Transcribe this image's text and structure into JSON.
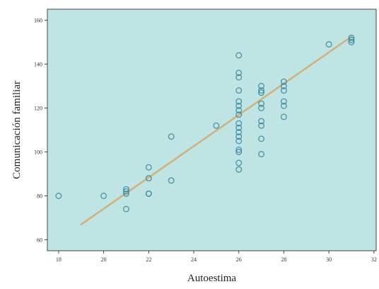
{
  "chart_data": {
    "type": "scatter",
    "xlabel": "Autoestima",
    "ylabel": "Comunicación familiar",
    "xlim": [
      17.5,
      32.1
    ],
    "ylim": [
      55,
      165
    ],
    "xticks": [
      18,
      20,
      22,
      24,
      26,
      28,
      30,
      32
    ],
    "yticks": [
      60,
      80,
      100,
      120,
      140,
      160
    ],
    "grid": false,
    "plot_background": "#bfe4e4",
    "marker_color": "#3b8aa0",
    "fit_line_color": "#d2b07a",
    "points": [
      [
        18,
        80
      ],
      [
        20,
        80
      ],
      [
        21,
        83
      ],
      [
        21,
        82
      ],
      [
        21,
        81
      ],
      [
        21,
        74
      ],
      [
        22,
        93
      ],
      [
        22,
        88
      ],
      [
        22,
        81
      ],
      [
        22,
        81
      ],
      [
        23,
        107
      ],
      [
        23,
        87
      ],
      [
        25,
        112
      ],
      [
        26,
        144
      ],
      [
        26,
        136
      ],
      [
        26,
        134
      ],
      [
        26,
        128
      ],
      [
        26,
        123
      ],
      [
        26,
        121
      ],
      [
        26,
        119
      ],
      [
        26,
        117
      ],
      [
        26,
        113
      ],
      [
        26,
        111
      ],
      [
        26,
        109
      ],
      [
        26,
        107
      ],
      [
        26,
        105
      ],
      [
        26,
        101
      ],
      [
        26,
        100
      ],
      [
        26,
        95
      ],
      [
        26,
        92
      ],
      [
        27,
        130
      ],
      [
        27,
        128
      ],
      [
        27,
        127
      ],
      [
        27,
        122
      ],
      [
        27,
        120
      ],
      [
        27,
        114
      ],
      [
        27,
        112
      ],
      [
        27,
        106
      ],
      [
        27,
        99
      ],
      [
        28,
        132
      ],
      [
        28,
        130
      ],
      [
        28,
        128
      ],
      [
        28,
        123
      ],
      [
        28,
        121
      ],
      [
        28,
        116
      ],
      [
        30,
        149
      ],
      [
        31,
        152
      ],
      [
        31,
        151
      ],
      [
        31,
        150
      ]
    ],
    "fit_line": {
      "x": [
        19,
        31
      ],
      "y": [
        67,
        152.5
      ]
    }
  }
}
